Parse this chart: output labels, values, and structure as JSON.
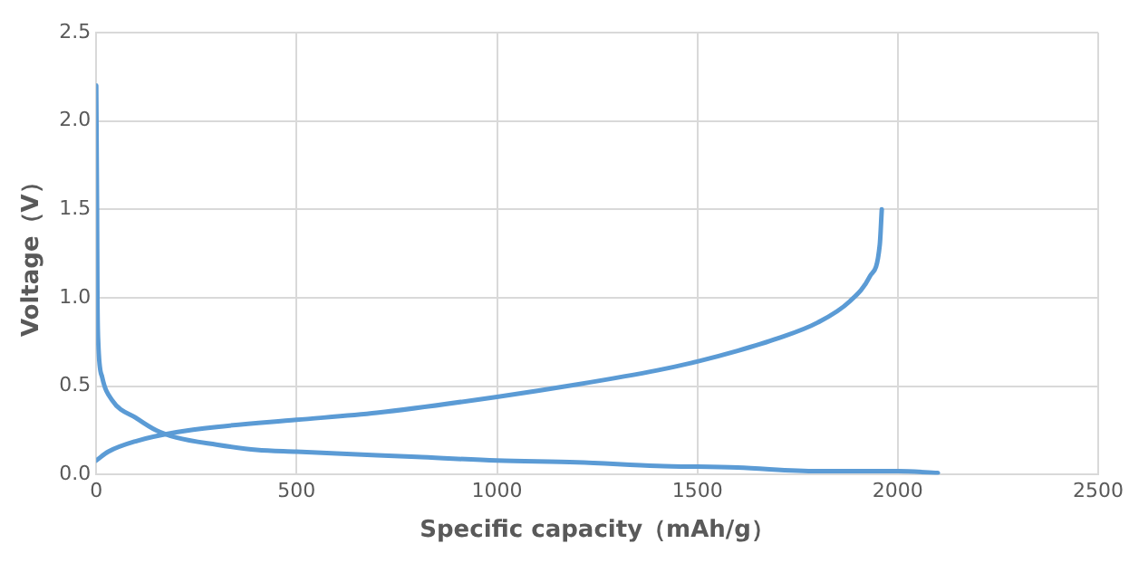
{
  "chart_data": {
    "type": "line",
    "xlabel": "Specific capacity（mAh/g）",
    "ylabel": "Voltage（V）",
    "xlim": [
      0,
      2500
    ],
    "xticks": [
      0,
      500,
      1000,
      1500,
      2000,
      2500
    ],
    "ylim": [
      0,
      2.5
    ],
    "yticks": [
      {
        "value": 0,
        "label": "0.0"
      },
      {
        "value": 0.5,
        "label": "0.5"
      },
      {
        "value": 1,
        "label": "1.0"
      },
      {
        "value": 1.5,
        "label": "1.5"
      },
      {
        "value": 2,
        "label": "2.0"
      },
      {
        "value": 2.5,
        "label": "2.5"
      }
    ],
    "grid": true,
    "marker": "none",
    "line_style": "solid",
    "series": [
      {
        "color": "#5b9bd5",
        "x": [
          0,
          2,
          3,
          5,
          15,
          40,
          100,
          150,
          200,
          300,
          400,
          500,
          600,
          800,
          1000,
          1200,
          1400,
          1600,
          1800,
          2000,
          2100
        ],
        "values": [
          2.2,
          1.5,
          1.0,
          0.75,
          0.55,
          0.42,
          0.32,
          0.25,
          0.21,
          0.17,
          0.14,
          0.13,
          0.12,
          0.1,
          0.08,
          0.07,
          0.05,
          0.04,
          0.02,
          0.02,
          0.01
        ]
      },
      {
        "color": "#5b9bd5",
        "x": [
          0,
          30,
          100,
          200,
          300,
          500,
          700,
          1000,
          1200,
          1400,
          1500,
          1600,
          1700,
          1800,
          1880,
          1930,
          1955,
          1960
        ],
        "values": [
          0.08,
          0.13,
          0.19,
          0.24,
          0.27,
          0.31,
          0.35,
          0.44,
          0.51,
          0.59,
          0.64,
          0.7,
          0.77,
          0.86,
          0.98,
          1.12,
          1.3,
          1.5
        ]
      }
    ]
  }
}
